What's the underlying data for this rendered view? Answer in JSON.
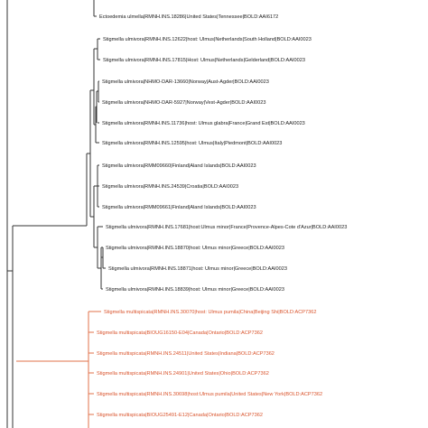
{
  "tree": {
    "colors": {
      "branch": "#333333",
      "black_label": "#1a1a1a",
      "red_label": "#d9532b",
      "red_branch": "#e0704a"
    },
    "leaves": [
      {
        "id": "t1",
        "label": "Ectoedemia ulmella|RMNH.INS.18286|United States|Tennessee|BOLD:AAI6172",
        "color": "black"
      },
      {
        "id": "t2",
        "label": "Stigmella ulmivora|RMNH.INS.12622|host: Ulmus|Netherlands|South Holland|BOLD:AAI0023",
        "color": "black"
      },
      {
        "id": "t3",
        "label": "Stigmella ulmivora|RMNH.INS.17815|Host: Ulmus|Netherlands|Gelderland|BOLD:AAI0023",
        "color": "black"
      },
      {
        "id": "t4",
        "label": "Stigmella ulmivora|NHMO-DAR-13660|Norway|Aust-Agder|BOLD:AAI0023",
        "color": "black"
      },
      {
        "id": "t5",
        "label": "Stigmella ulmivora|NHMO-DAR-5927|Norway|Vest-Agder|BOLD:AAI0023",
        "color": "black"
      },
      {
        "id": "t6",
        "label": "Stigmella ulmivora|RMNH.INS.11736|host: Ulmus glabra|France|Grand Est|BOLD:AAI0023",
        "color": "black"
      },
      {
        "id": "t7",
        "label": "Stigmella ulmivora|RMNH.INS.12595|host: Ulmus|Italy|Piedmont|BOLD:AAI0023",
        "color": "black"
      },
      {
        "id": "t8",
        "label": "Stigmella ulmivora|RMM09660|Finland|Aland Islands|BOLD:AAI0023",
        "color": "black"
      },
      {
        "id": "t9",
        "label": "Stigmella ulmivora|RMNH.INS.24539|Croatia|BOLD:AAI0023",
        "color": "black"
      },
      {
        "id": "t10",
        "label": "Stigmella ulmivora|RMM09661|Finland|Aland Islands|BOLD:AAI0023",
        "color": "black"
      },
      {
        "id": "t11",
        "label": "Stigmella ulmivora|RMNH.INS.17681|host:Ulmus minor|France|Provence-Alpes-Cote d'Azur|BOLD:AAI0023",
        "color": "black"
      },
      {
        "id": "t12",
        "label": "Stigmella ulmivora|RMNH.INS.18870|host: Ulmus minor|Greece|BOLD:AAI0023",
        "color": "black"
      },
      {
        "id": "t13",
        "label": "Stigmella ulmivora|RMNH.INS.18871|host: Ulmus minor|Greece|BOLD:AAI0023",
        "color": "black"
      },
      {
        "id": "t14",
        "label": "Stigmella ulmivora|RMNH.INS.18839|host: Ulmus minor|Greece|BOLD:AAI0023",
        "color": "black"
      },
      {
        "id": "t15",
        "label": "Stigmella multispicata|RMNH.INS.30070|host: Ulmus pumila|China|Beijing Shi|BOLD:ACP7362",
        "color": "red"
      },
      {
        "id": "t16",
        "label": "Stigmella multispicata|BIOUG16150-E04|Canada|Ontario|BOLD:ACP7362",
        "color": "red"
      },
      {
        "id": "t17",
        "label": "Stigmella multispicata|RMNH.INS.24511|United States|Indiana|BOLD:ACP7362",
        "color": "red"
      },
      {
        "id": "t18",
        "label": "Stigmella multispicata|RMNH.INS.24901|United States|Ohio|BOLD:ACP7362",
        "color": "red"
      },
      {
        "id": "t19",
        "label": "Stigmella multispicata|RMNH.INS.30698|host:Ulmus pumila|United States|New York|BOLD:ACP7362",
        "color": "red"
      },
      {
        "id": "t20",
        "label": "Stigmella multispicata|BIOUG25491-E12|Canada|Ontario|BOLD:ACP7362",
        "color": "red"
      }
    ]
  }
}
